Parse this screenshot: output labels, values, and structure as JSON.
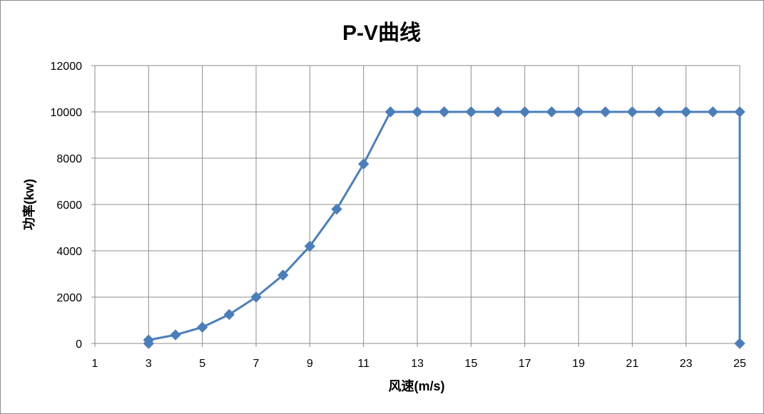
{
  "chart_data": {
    "type": "scatter",
    "title": "P-V曲线",
    "xlabel": "风速(m/s)",
    "ylabel": "功率(kw)",
    "xlim": [
      1,
      25
    ],
    "ylim": [
      0,
      12000
    ],
    "xticks": [
      1,
      3,
      5,
      7,
      9,
      11,
      13,
      15,
      17,
      19,
      21,
      23,
      25
    ],
    "yticks": [
      0,
      2000,
      4000,
      6000,
      8000,
      10000,
      12000
    ],
    "grid": true,
    "legend": "none",
    "series": [
      {
        "color": "#4a7ebb",
        "line": true,
        "marker": "diamond",
        "points": [
          [
            3,
            0
          ],
          [
            3,
            150
          ],
          [
            4,
            370
          ],
          [
            5,
            700
          ],
          [
            6,
            1250
          ],
          [
            7,
            2000
          ],
          [
            8,
            2950
          ],
          [
            9,
            4200
          ],
          [
            10,
            5800
          ],
          [
            11,
            7750
          ],
          [
            12,
            10000
          ],
          [
            13,
            10000
          ],
          [
            14,
            10000
          ],
          [
            15,
            10000
          ],
          [
            16,
            10000
          ],
          [
            17,
            10000
          ],
          [
            18,
            10000
          ],
          [
            19,
            10000
          ],
          [
            20,
            10000
          ],
          [
            21,
            10000
          ],
          [
            22,
            10000
          ],
          [
            23,
            10000
          ],
          [
            24,
            10000
          ],
          [
            25,
            10000
          ],
          [
            25,
            0
          ]
        ]
      }
    ]
  }
}
